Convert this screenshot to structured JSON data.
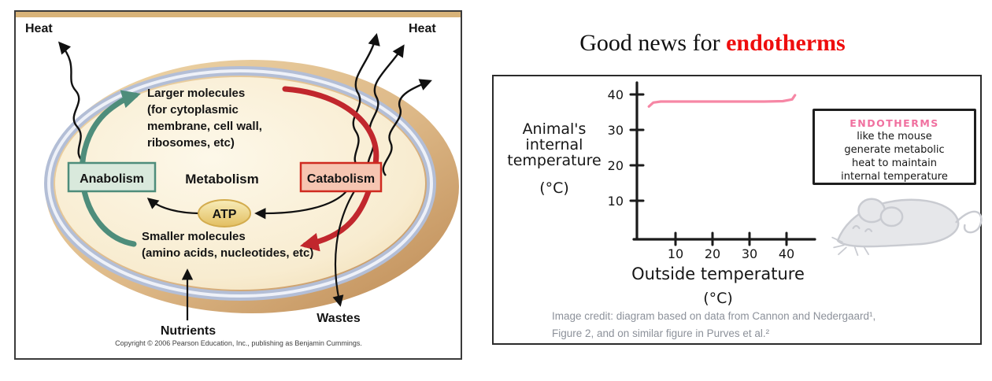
{
  "left_figure": {
    "heat_left": "Heat",
    "heat_right": "Heat",
    "anabolism_label": "Anabolism",
    "metabolism_label": "Metabolism",
    "catabolism_label": "Catabolism",
    "atp_label": "ATP",
    "larger_molecules_lines": [
      "Larger molecules",
      "(for cytoplasmic",
      "membrane, cell wall,",
      "ribosomes, etc)"
    ],
    "smaller_molecules_lines": [
      "Smaller molecules",
      "(amino acids, nucleotides, etc)"
    ],
    "nutrients_label": "Nutrients",
    "wastes_label": "Wastes",
    "copyright": "Copyright © 2006 Pearson Education, Inc., publishing as Benjamin Cummings.",
    "colors": {
      "anabolism_fill": "#d9e9dc",
      "anabolism_border": "#4e8d7b",
      "catabolism_fill": "#f6c5b1",
      "catabolism_border": "#cf2b20",
      "teal_arrow": "#4e8d7b",
      "red_arrow": "#c1272d",
      "atp_border": "#d3ac4e"
    }
  },
  "right_panel": {
    "title_prefix": "Good news for ",
    "title_highlight": "endotherms",
    "title_highlight_color": "#ee0e0e",
    "ylabel_lines": [
      "Animal's",
      "internal",
      "temperature",
      "(°C)"
    ],
    "xlabel_lines": [
      "Outside temperature",
      "(°C)"
    ],
    "note": {
      "title": "ENDOTHERMS",
      "title_color": "#f0709f",
      "lines": [
        "like the mouse",
        "generate metabolic",
        "heat to maintain",
        "internal temperature"
      ]
    },
    "credit_lines": [
      "Image credit: diagram based on data from Cannon and Nedergaard¹,",
      "Figure 2, and on similar figure in Purves et al.²"
    ]
  },
  "chart_data": {
    "type": "line",
    "title": "Good news for endotherms",
    "xlabel": "Outside temperature (°C)",
    "ylabel": "Animal's internal temperature (°C)",
    "x_ticks": [
      10,
      20,
      30,
      40
    ],
    "y_ticks": [
      40,
      30,
      20,
      10
    ],
    "xlim": [
      0,
      47
    ],
    "ylim": [
      0,
      46
    ],
    "grid": false,
    "legend": "none",
    "series": [
      {
        "name": "Endotherm internal temperature",
        "x": [
          2.8,
          4,
          6,
          20,
          34,
          39,
          41.5,
          42.3
        ],
        "y": [
          36.6,
          37.7,
          38,
          38,
          38,
          38.1,
          38.6,
          39.8
        ]
      }
    ],
    "line_color": "#f687a5",
    "annotation": "ENDOTHERMS like the mouse generate metabolic heat to maintain internal temperature"
  }
}
